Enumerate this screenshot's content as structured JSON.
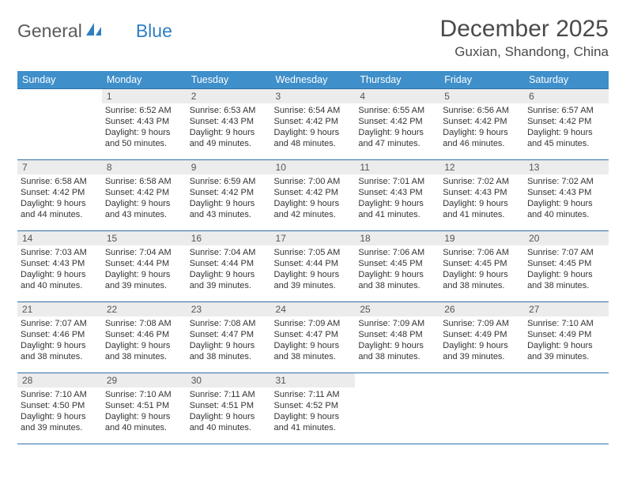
{
  "logo": {
    "text1": "General",
    "text2": "Blue"
  },
  "month_title": "December 2025",
  "location": "Guxian, Shandong, China",
  "colors": {
    "header_bg": "#3f8fca",
    "header_text": "#ffffff",
    "daynum_bg": "#ececec",
    "border": "#2f6fa8",
    "logo_blue": "#2f7fc2",
    "text": "#333333"
  },
  "weekdays": [
    "Sunday",
    "Monday",
    "Tuesday",
    "Wednesday",
    "Thursday",
    "Friday",
    "Saturday"
  ],
  "weeks": [
    [
      null,
      {
        "n": "1",
        "sr": "Sunrise: 6:52 AM",
        "ss": "Sunset: 4:43 PM",
        "dl": "Daylight: 9 hours and 50 minutes."
      },
      {
        "n": "2",
        "sr": "Sunrise: 6:53 AM",
        "ss": "Sunset: 4:43 PM",
        "dl": "Daylight: 9 hours and 49 minutes."
      },
      {
        "n": "3",
        "sr": "Sunrise: 6:54 AM",
        "ss": "Sunset: 4:42 PM",
        "dl": "Daylight: 9 hours and 48 minutes."
      },
      {
        "n": "4",
        "sr": "Sunrise: 6:55 AM",
        "ss": "Sunset: 4:42 PM",
        "dl": "Daylight: 9 hours and 47 minutes."
      },
      {
        "n": "5",
        "sr": "Sunrise: 6:56 AM",
        "ss": "Sunset: 4:42 PM",
        "dl": "Daylight: 9 hours and 46 minutes."
      },
      {
        "n": "6",
        "sr": "Sunrise: 6:57 AM",
        "ss": "Sunset: 4:42 PM",
        "dl": "Daylight: 9 hours and 45 minutes."
      }
    ],
    [
      {
        "n": "7",
        "sr": "Sunrise: 6:58 AM",
        "ss": "Sunset: 4:42 PM",
        "dl": "Daylight: 9 hours and 44 minutes."
      },
      {
        "n": "8",
        "sr": "Sunrise: 6:58 AM",
        "ss": "Sunset: 4:42 PM",
        "dl": "Daylight: 9 hours and 43 minutes."
      },
      {
        "n": "9",
        "sr": "Sunrise: 6:59 AM",
        "ss": "Sunset: 4:42 PM",
        "dl": "Daylight: 9 hours and 43 minutes."
      },
      {
        "n": "10",
        "sr": "Sunrise: 7:00 AM",
        "ss": "Sunset: 4:42 PM",
        "dl": "Daylight: 9 hours and 42 minutes."
      },
      {
        "n": "11",
        "sr": "Sunrise: 7:01 AM",
        "ss": "Sunset: 4:43 PM",
        "dl": "Daylight: 9 hours and 41 minutes."
      },
      {
        "n": "12",
        "sr": "Sunrise: 7:02 AM",
        "ss": "Sunset: 4:43 PM",
        "dl": "Daylight: 9 hours and 41 minutes."
      },
      {
        "n": "13",
        "sr": "Sunrise: 7:02 AM",
        "ss": "Sunset: 4:43 PM",
        "dl": "Daylight: 9 hours and 40 minutes."
      }
    ],
    [
      {
        "n": "14",
        "sr": "Sunrise: 7:03 AM",
        "ss": "Sunset: 4:43 PM",
        "dl": "Daylight: 9 hours and 40 minutes."
      },
      {
        "n": "15",
        "sr": "Sunrise: 7:04 AM",
        "ss": "Sunset: 4:44 PM",
        "dl": "Daylight: 9 hours and 39 minutes."
      },
      {
        "n": "16",
        "sr": "Sunrise: 7:04 AM",
        "ss": "Sunset: 4:44 PM",
        "dl": "Daylight: 9 hours and 39 minutes."
      },
      {
        "n": "17",
        "sr": "Sunrise: 7:05 AM",
        "ss": "Sunset: 4:44 PM",
        "dl": "Daylight: 9 hours and 39 minutes."
      },
      {
        "n": "18",
        "sr": "Sunrise: 7:06 AM",
        "ss": "Sunset: 4:45 PM",
        "dl": "Daylight: 9 hours and 38 minutes."
      },
      {
        "n": "19",
        "sr": "Sunrise: 7:06 AM",
        "ss": "Sunset: 4:45 PM",
        "dl": "Daylight: 9 hours and 38 minutes."
      },
      {
        "n": "20",
        "sr": "Sunrise: 7:07 AM",
        "ss": "Sunset: 4:45 PM",
        "dl": "Daylight: 9 hours and 38 minutes."
      }
    ],
    [
      {
        "n": "21",
        "sr": "Sunrise: 7:07 AM",
        "ss": "Sunset: 4:46 PM",
        "dl": "Daylight: 9 hours and 38 minutes."
      },
      {
        "n": "22",
        "sr": "Sunrise: 7:08 AM",
        "ss": "Sunset: 4:46 PM",
        "dl": "Daylight: 9 hours and 38 minutes."
      },
      {
        "n": "23",
        "sr": "Sunrise: 7:08 AM",
        "ss": "Sunset: 4:47 PM",
        "dl": "Daylight: 9 hours and 38 minutes."
      },
      {
        "n": "24",
        "sr": "Sunrise: 7:09 AM",
        "ss": "Sunset: 4:47 PM",
        "dl": "Daylight: 9 hours and 38 minutes."
      },
      {
        "n": "25",
        "sr": "Sunrise: 7:09 AM",
        "ss": "Sunset: 4:48 PM",
        "dl": "Daylight: 9 hours and 38 minutes."
      },
      {
        "n": "26",
        "sr": "Sunrise: 7:09 AM",
        "ss": "Sunset: 4:49 PM",
        "dl": "Daylight: 9 hours and 39 minutes."
      },
      {
        "n": "27",
        "sr": "Sunrise: 7:10 AM",
        "ss": "Sunset: 4:49 PM",
        "dl": "Daylight: 9 hours and 39 minutes."
      }
    ],
    [
      {
        "n": "28",
        "sr": "Sunrise: 7:10 AM",
        "ss": "Sunset: 4:50 PM",
        "dl": "Daylight: 9 hours and 39 minutes."
      },
      {
        "n": "29",
        "sr": "Sunrise: 7:10 AM",
        "ss": "Sunset: 4:51 PM",
        "dl": "Daylight: 9 hours and 40 minutes."
      },
      {
        "n": "30",
        "sr": "Sunrise: 7:11 AM",
        "ss": "Sunset: 4:51 PM",
        "dl": "Daylight: 9 hours and 40 minutes."
      },
      {
        "n": "31",
        "sr": "Sunrise: 7:11 AM",
        "ss": "Sunset: 4:52 PM",
        "dl": "Daylight: 9 hours and 41 minutes."
      },
      null,
      null,
      null
    ]
  ]
}
